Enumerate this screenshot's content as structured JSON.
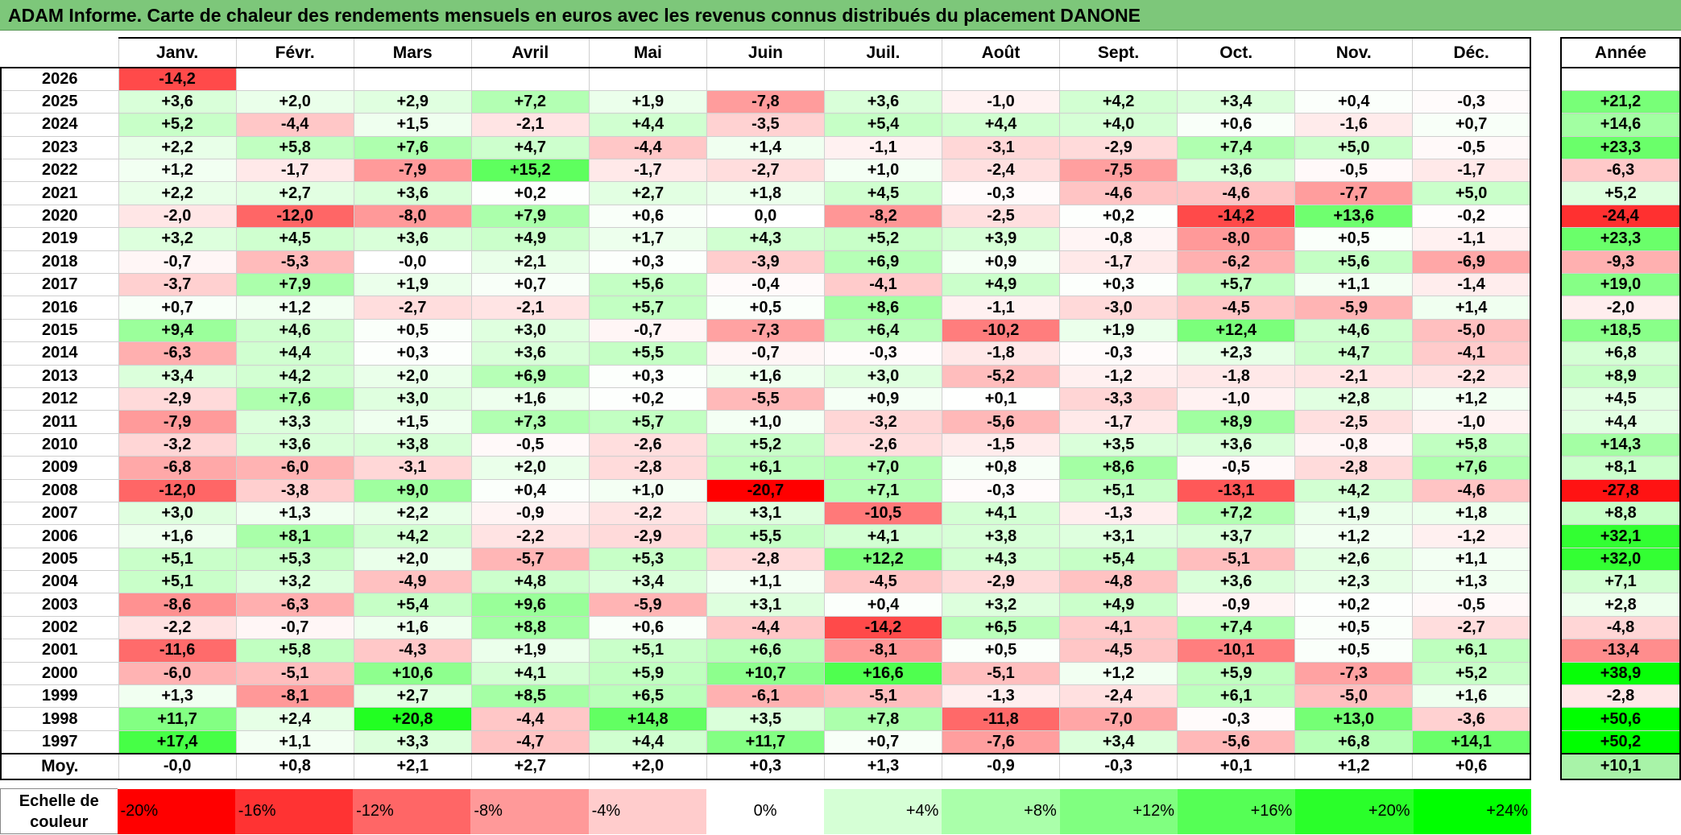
{
  "title": "ADAM Informe. Carte de chaleur des rendements mensuels en euros avec les revenus connus distribués du placement DANONE",
  "chart_data": {
    "type": "heatmap",
    "columns": [
      "Janv.",
      "Févr.",
      "Mars",
      "Avril",
      "Mai",
      "Juin",
      "Juil.",
      "Août",
      "Sept.",
      "Oct.",
      "Nov.",
      "Déc."
    ],
    "year_header": "Année",
    "rows": [
      {
        "year": "2026",
        "months": [
          "-14,2",
          "",
          "",
          "",
          "",
          "",
          "",
          "",
          "",
          "",
          "",
          ""
        ],
        "annual": ""
      },
      {
        "year": "2025",
        "months": [
          "+3,6",
          "+2,0",
          "+2,9",
          "+7,2",
          "+1,9",
          "-7,8",
          "+3,6",
          "-1,0",
          "+4,2",
          "+3,4",
          "+0,4",
          "-0,3"
        ],
        "annual": "+21,2"
      },
      {
        "year": "2024",
        "months": [
          "+5,2",
          "-4,4",
          "+1,5",
          "-2,1",
          "+4,4",
          "-3,5",
          "+5,4",
          "+4,4",
          "+4,0",
          "+0,6",
          "-1,6",
          "+0,7"
        ],
        "annual": "+14,6"
      },
      {
        "year": "2023",
        "months": [
          "+2,2",
          "+5,8",
          "+7,6",
          "+4,7",
          "-4,4",
          "+1,4",
          "-1,1",
          "-3,1",
          "-2,9",
          "+7,4",
          "+5,0",
          "-0,5"
        ],
        "annual": "+23,3"
      },
      {
        "year": "2022",
        "months": [
          "+1,2",
          "-1,7",
          "-7,9",
          "+15,2",
          "-1,7",
          "-2,7",
          "+1,0",
          "-2,4",
          "-7,5",
          "+3,6",
          "-0,5",
          "-1,7"
        ],
        "annual": "-6,3"
      },
      {
        "year": "2021",
        "months": [
          "+2,2",
          "+2,7",
          "+3,6",
          "+0,2",
          "+2,7",
          "+1,8",
          "+4,5",
          "-0,3",
          "-4,6",
          "-4,6",
          "-7,7",
          "+5,0"
        ],
        "annual": "+5,2"
      },
      {
        "year": "2020",
        "months": [
          "-2,0",
          "-12,0",
          "-8,0",
          "+7,9",
          "+0,6",
          "0,0",
          "-8,2",
          "-2,5",
          "+0,2",
          "-14,2",
          "+13,6",
          "-0,2"
        ],
        "annual": "-24,4"
      },
      {
        "year": "2019",
        "months": [
          "+3,2",
          "+4,5",
          "+3,6",
          "+4,9",
          "+1,7",
          "+4,3",
          "+5,2",
          "+3,9",
          "-0,8",
          "-8,0",
          "+0,5",
          "-1,1"
        ],
        "annual": "+23,3"
      },
      {
        "year": "2018",
        "months": [
          "-0,7",
          "-5,3",
          "-0,0",
          "+2,1",
          "+0,3",
          "-3,9",
          "+6,9",
          "+0,9",
          "-1,7",
          "-6,2",
          "+5,6",
          "-6,9"
        ],
        "annual": "-9,3"
      },
      {
        "year": "2017",
        "months": [
          "-3,7",
          "+7,9",
          "+1,9",
          "+0,7",
          "+5,6",
          "-0,4",
          "-4,1",
          "+4,9",
          "+0,3",
          "+5,7",
          "+1,1",
          "-1,4"
        ],
        "annual": "+19,0"
      },
      {
        "year": "2016",
        "months": [
          "+0,7",
          "+1,2",
          "-2,7",
          "-2,1",
          "+5,7",
          "+0,5",
          "+8,6",
          "-1,1",
          "-3,0",
          "-4,5",
          "-5,9",
          "+1,4"
        ],
        "annual": "-2,0"
      },
      {
        "year": "2015",
        "months": [
          "+9,4",
          "+4,6",
          "+0,5",
          "+3,0",
          "-0,7",
          "-7,3",
          "+6,4",
          "-10,2",
          "+1,9",
          "+12,4",
          "+4,6",
          "-5,0"
        ],
        "annual": "+18,5"
      },
      {
        "year": "2014",
        "months": [
          "-6,3",
          "+4,4",
          "+0,3",
          "+3,6",
          "+5,5",
          "-0,7",
          "-0,3",
          "-1,8",
          "-0,3",
          "+2,3",
          "+4,7",
          "-4,1"
        ],
        "annual": "+6,8"
      },
      {
        "year": "2013",
        "months": [
          "+3,4",
          "+4,2",
          "+2,0",
          "+6,9",
          "+0,3",
          "+1,6",
          "+3,0",
          "-5,2",
          "-1,2",
          "-1,8",
          "-2,1",
          "-2,2"
        ],
        "annual": "+8,9"
      },
      {
        "year": "2012",
        "months": [
          "-2,9",
          "+7,6",
          "+3,0",
          "+1,6",
          "+0,2",
          "-5,5",
          "+0,9",
          "+0,1",
          "-3,3",
          "-1,0",
          "+2,8",
          "+1,2"
        ],
        "annual": "+4,5"
      },
      {
        "year": "2011",
        "months": [
          "-7,9",
          "+3,3",
          "+1,5",
          "+7,3",
          "+5,7",
          "+1,0",
          "-3,2",
          "-5,6",
          "-1,7",
          "+8,9",
          "-2,5",
          "-1,0"
        ],
        "annual": "+4,4"
      },
      {
        "year": "2010",
        "months": [
          "-3,2",
          "+3,6",
          "+3,8",
          "-0,5",
          "-2,6",
          "+5,2",
          "-2,6",
          "-1,5",
          "+3,5",
          "+3,6",
          "-0,8",
          "+5,8"
        ],
        "annual": "+14,3"
      },
      {
        "year": "2009",
        "months": [
          "-6,8",
          "-6,0",
          "-3,1",
          "+2,0",
          "-2,8",
          "+6,1",
          "+7,0",
          "+0,8",
          "+8,6",
          "-0,5",
          "-2,8",
          "+7,6"
        ],
        "annual": "+8,1"
      },
      {
        "year": "2008",
        "months": [
          "-12,0",
          "-3,8",
          "+9,0",
          "+0,4",
          "+1,0",
          "-20,7",
          "+7,1",
          "-0,3",
          "+5,1",
          "-13,1",
          "+4,2",
          "-4,6"
        ],
        "annual": "-27,8"
      },
      {
        "year": "2007",
        "months": [
          "+3,0",
          "+1,3",
          "+2,2",
          "-0,9",
          "-2,2",
          "+3,1",
          "-10,5",
          "+4,1",
          "-1,3",
          "+7,2",
          "+1,9",
          "+1,8"
        ],
        "annual": "+8,8"
      },
      {
        "year": "2006",
        "months": [
          "+1,6",
          "+8,1",
          "+4,2",
          "-2,2",
          "-2,9",
          "+5,5",
          "+4,1",
          "+3,8",
          "+3,1",
          "+3,7",
          "+1,2",
          "-1,2"
        ],
        "annual": "+32,1"
      },
      {
        "year": "2005",
        "months": [
          "+5,1",
          "+5,3",
          "+2,0",
          "-5,7",
          "+5,3",
          "-2,8",
          "+12,2",
          "+4,3",
          "+5,4",
          "-5,1",
          "+2,6",
          "+1,1"
        ],
        "annual": "+32,0"
      },
      {
        "year": "2004",
        "months": [
          "+5,1",
          "+3,2",
          "-4,9",
          "+4,8",
          "+3,4",
          "+1,1",
          "-4,5",
          "-2,9",
          "-4,8",
          "+3,6",
          "+2,3",
          "+1,3"
        ],
        "annual": "+7,1"
      },
      {
        "year": "2003",
        "months": [
          "-8,6",
          "-6,3",
          "+5,4",
          "+9,6",
          "-5,9",
          "+3,1",
          "+0,4",
          "+3,2",
          "+4,9",
          "-0,9",
          "+0,2",
          "-0,5"
        ],
        "annual": "+2,8"
      },
      {
        "year": "2002",
        "months": [
          "-2,2",
          "-0,7",
          "+1,6",
          "+8,8",
          "+0,6",
          "-4,4",
          "-14,2",
          "+6,5",
          "-4,1",
          "+7,4",
          "+0,5",
          "-2,7"
        ],
        "annual": "-4,8"
      },
      {
        "year": "2001",
        "months": [
          "-11,6",
          "+5,8",
          "-4,3",
          "+1,9",
          "+5,1",
          "+6,6",
          "-8,1",
          "+0,5",
          "-4,5",
          "-10,1",
          "+0,5",
          "+6,1"
        ],
        "annual": "-13,4"
      },
      {
        "year": "2000",
        "months": [
          "-6,0",
          "-5,1",
          "+10,6",
          "+4,1",
          "+5,9",
          "+10,7",
          "+16,6",
          "-5,1",
          "+1,2",
          "+5,9",
          "-7,3",
          "+5,2"
        ],
        "annual": "+38,9"
      },
      {
        "year": "1999",
        "months": [
          "+1,3",
          "-8,1",
          "+2,7",
          "+8,5",
          "+6,5",
          "-6,1",
          "-5,1",
          "-1,3",
          "-2,4",
          "+6,1",
          "-5,0",
          "+1,6"
        ],
        "annual": "-2,8"
      },
      {
        "year": "1998",
        "months": [
          "+11,7",
          "+2,4",
          "+20,8",
          "-4,4",
          "+14,8",
          "+3,5",
          "+7,8",
          "-11,8",
          "-7,0",
          "-0,3",
          "+13,0",
          "-3,6"
        ],
        "annual": "+50,6"
      },
      {
        "year": "1997",
        "months": [
          "+17,4",
          "+1,1",
          "+3,3",
          "-4,7",
          "+4,4",
          "+11,7",
          "+0,7",
          "-7,6",
          "+3,4",
          "-5,6",
          "+6,8",
          "+14,1"
        ],
        "annual": "+50,2"
      }
    ],
    "average": {
      "label": "Moy.",
      "months": [
        "-0,0",
        "+0,8",
        "+2,1",
        "+2,7",
        "+2,0",
        "+0,3",
        "+1,3",
        "-0,9",
        "-0,3",
        "+0,1",
        "+1,2",
        "+0,6"
      ],
      "annual": "+10,1"
    },
    "color_scale": {
      "label": "Echelle de couleur",
      "stops": [
        "-20%",
        "-16%",
        "-12%",
        "-8%",
        "-4%",
        "0%",
        "+4%",
        "+8%",
        "+12%",
        "+16%",
        "+20%",
        "+24%"
      ],
      "stop_values": [
        -20,
        -16,
        -12,
        -8,
        -4,
        0,
        4,
        8,
        12,
        16,
        20,
        24
      ]
    },
    "colors": {
      "negative": "#ff0000",
      "neutral": "#ffffff",
      "positive": "#00ff00",
      "title_bar": "#7dc77a"
    }
  }
}
